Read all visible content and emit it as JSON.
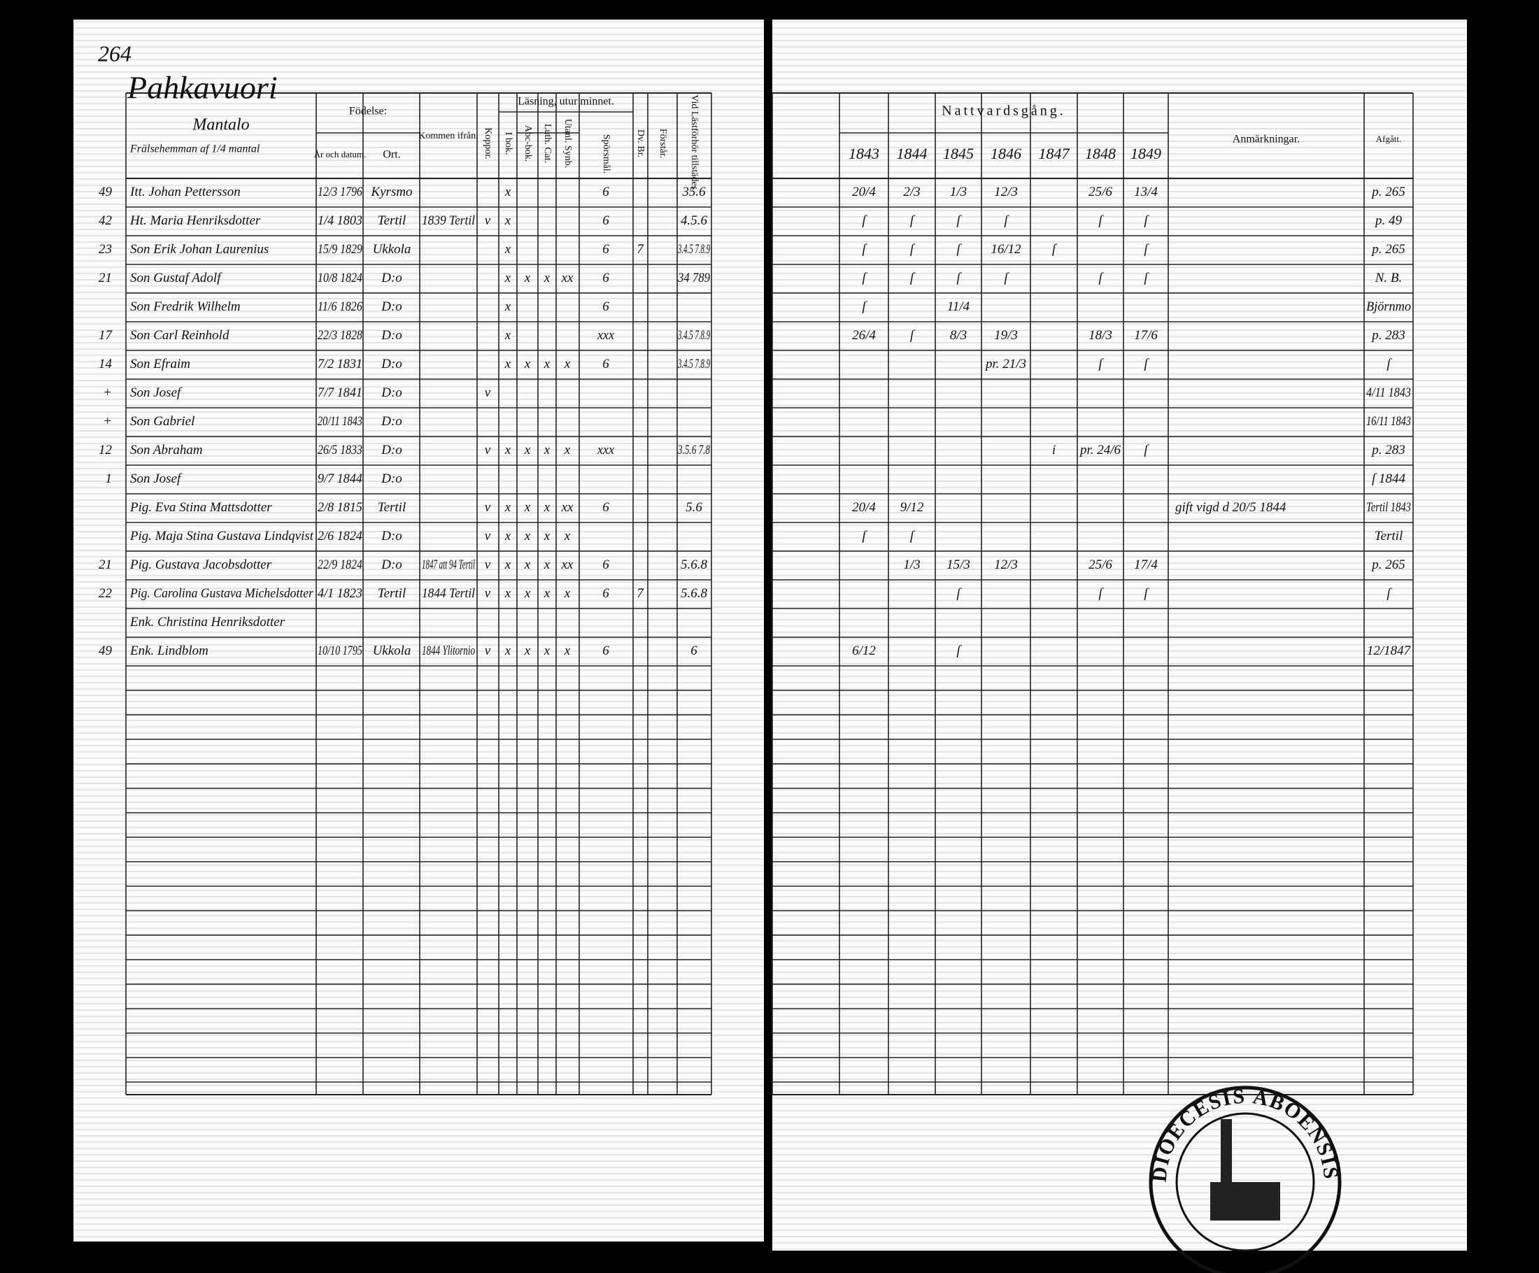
{
  "header": {
    "page_number": "264",
    "farm": "Pahkavuori",
    "name_column_title": "Mantalo",
    "name_column_note": "Frälsehemman af 1/4 mantal"
  },
  "columns": {
    "birth": "Födelse:",
    "birth_date": "År och datum.",
    "birth_place": "Ort.",
    "came_from": "Kommen ifrån.",
    "smallpox": "Koppor.",
    "reading": "Läsning, utur minnet.",
    "book": "I bok.",
    "abc": "Abc-bok.",
    "catechism": "Luth. Cat.",
    "outside": "Utanl. Synb.",
    "questions": "Spörsmål.",
    "dv": "Dv. Br.",
    "understands": "Förstår.",
    "examinations": "Vid Lästförhör tillstädes.",
    "communion": "Nattvardsgång.",
    "years": [
      "1843",
      "1844",
      "1845",
      "1846",
      "1847",
      "1848",
      "1849"
    ],
    "remarks": "Anmärkningar.",
    "departed": "Afgått."
  },
  "table": {
    "rows": [
      [
        "49",
        "Itt. Johan Pettersson",
        "12/3 1796",
        "Kyrsmo",
        null,
        null,
        "x",
        null,
        null,
        null,
        "6",
        null,
        "35.6",
        [
          "20/4",
          "2/3",
          "1/3",
          "12/3",
          null,
          "25/6",
          "13/4"
        ],
        null,
        "p. 265"
      ],
      [
        "42",
        "Ht. Maria Henriksdotter",
        "1/4 1803",
        "Tertil",
        "1839 Tertil",
        "v",
        "x",
        null,
        null,
        null,
        "6",
        null,
        "4.5.6",
        [
          "ſ",
          "ſ",
          "ſ",
          "ſ",
          null,
          "ſ",
          "ſ"
        ],
        null,
        "p. 49"
      ],
      [
        "23",
        "Son Erik Johan Laurenius",
        "15/9 1829",
        "Ukkola",
        null,
        null,
        "x",
        null,
        null,
        null,
        "6",
        "7",
        "3.4.5 7.8.9",
        [
          "ſ",
          "ſ",
          "ſ",
          "16/12",
          "ſ",
          null,
          "ſ"
        ],
        null,
        "p. 265"
      ],
      [
        "21",
        "Son Gustaf Adolf",
        "10/8 1824",
        "D:o",
        null,
        null,
        "x",
        "x",
        "x",
        "xx",
        "6",
        null,
        "34 789",
        [
          "ſ",
          "ſ",
          "ſ",
          "ſ",
          null,
          "ſ",
          "ſ"
        ],
        null,
        "N. B."
      ],
      [
        null,
        "Son Fredrik Wilhelm",
        "11/6 1826",
        "D:o",
        null,
        null,
        "x",
        null,
        null,
        null,
        "6",
        null,
        null,
        [
          "ſ",
          null,
          "11/4",
          null,
          null,
          null,
          null
        ],
        null,
        "Björnmo"
      ],
      [
        "17",
        "Son Carl Reinhold",
        "22/3 1828",
        "D:o",
        null,
        null,
        "x",
        null,
        null,
        null,
        "xxx",
        null,
        "3.4.5 7.8.9",
        [
          "26/4",
          "ſ",
          "8/3",
          "19/3",
          null,
          "18/3",
          "17/6"
        ],
        null,
        "p. 283"
      ],
      [
        "14",
        "Son Efraim",
        "7/2 1831",
        "D:o",
        null,
        null,
        "x",
        "x",
        "x",
        "x",
        "6",
        null,
        "3.4.5 7.8.9",
        [
          null,
          null,
          null,
          "pr. 21/3",
          null,
          "ſ",
          "ſ"
        ],
        null,
        "ſ"
      ],
      [
        "+",
        "Son Josef",
        "7/7 1841",
        "D:o",
        null,
        "v",
        null,
        null,
        null,
        null,
        null,
        null,
        null,
        [
          null,
          null,
          null,
          null,
          null,
          null,
          null
        ],
        null,
        "4/11 1843"
      ],
      [
        "+",
        "Son Gabriel",
        "20/11 1843",
        "D:o",
        null,
        null,
        null,
        null,
        null,
        null,
        null,
        null,
        null,
        [
          null,
          null,
          null,
          null,
          null,
          null,
          null
        ],
        null,
        "16/11 1843"
      ],
      [
        "12",
        "Son Abraham",
        "26/5 1833",
        "D:o",
        null,
        "v",
        "x",
        "x",
        "x",
        "x",
        "xxx",
        null,
        "3.5.6 7.8",
        [
          null,
          null,
          null,
          null,
          "i",
          "pr. 24/6",
          "ſ"
        ],
        null,
        "p. 283"
      ],
      [
        "1",
        "Son Josef",
        "9/7 1844",
        "D:o",
        null,
        null,
        null,
        null,
        null,
        null,
        null,
        null,
        null,
        [
          null,
          null,
          null,
          null,
          null,
          null,
          null
        ],
        null,
        "ſ 1844"
      ],
      [
        null,
        "Pig. Eva Stina Mattsdotter",
        "2/8 1815",
        "Tertil",
        null,
        "v",
        "x",
        "x",
        "x",
        "xx",
        "6",
        null,
        "5.6",
        [
          "20/4",
          "9/12",
          null,
          null,
          null,
          null,
          null
        ],
        "gift vigd d 20/5 1844",
        "Tertil 1843"
      ],
      [
        null,
        "Pig. Maja Stina Gustava Lindqvist",
        "2/6 1824",
        "D:o",
        null,
        "v",
        "x",
        "x",
        "x",
        "x",
        null,
        null,
        null,
        [
          "ſ",
          "ſ",
          null,
          null,
          null,
          null,
          null
        ],
        null,
        "Tertil"
      ],
      [
        "21",
        "Pig. Gustava Jacobsdotter",
        "22/9 1824",
        "D:o",
        "1847 att 94 Tertil",
        "v",
        "x",
        "x",
        "x",
        "xx",
        "6",
        null,
        "5.6.8",
        [
          null,
          "1/3",
          "15/3",
          "12/3",
          null,
          "25/6",
          "17/4"
        ],
        null,
        "p. 265"
      ],
      [
        "22",
        "Pig. Carolina Gustava Michelsdotter",
        "4/1 1823",
        "Tertil",
        "1844 Tertil",
        "v",
        "x",
        "x",
        "x",
        "x",
        "6",
        "7",
        "5.6.8",
        [
          null,
          null,
          "ſ",
          null,
          null,
          "ſ",
          "ſ"
        ],
        null,
        "ſ"
      ],
      [
        null,
        "Enk. Christina Henriksdotter",
        null,
        null,
        null,
        null,
        null,
        null,
        null,
        null,
        null,
        null,
        null,
        [
          null,
          null,
          null,
          null,
          null,
          null,
          null
        ],
        null,
        null
      ],
      [
        "49",
        "Enk. Lindblom",
        "10/10 1795",
        "Ukkola",
        "1844 Ylitornio",
        "v",
        "x",
        "x",
        "x",
        "x",
        "6",
        null,
        "6",
        [
          "6/12",
          null,
          "ſ",
          null,
          null,
          null,
          null
        ],
        null,
        "12/1847"
      ]
    ]
  },
  "stamp": {
    "text": "DIOECESIS ABOENSIS"
  }
}
